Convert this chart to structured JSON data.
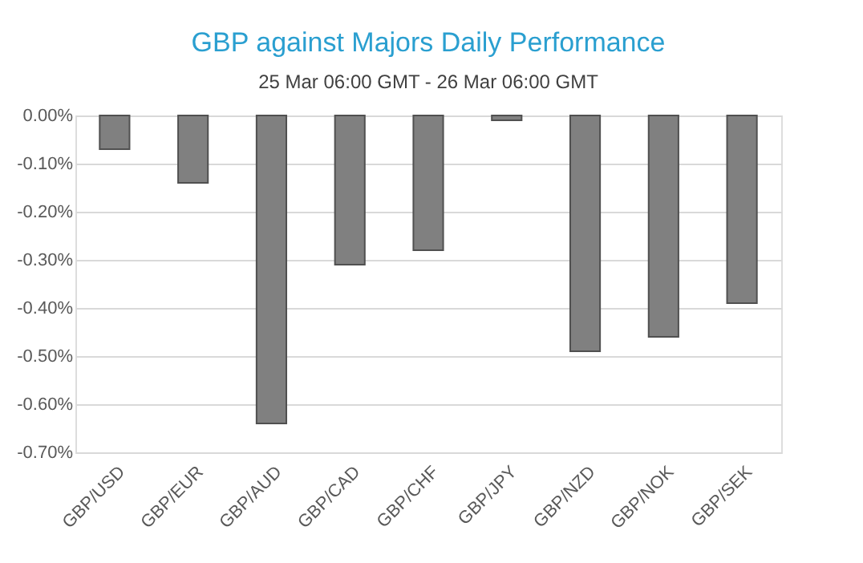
{
  "chart_data": {
    "type": "bar",
    "title": "GBP against Majors Daily Performance",
    "subtitle": "25 Mar 06:00 GMT - 26 Mar 06:00 GMT",
    "categories": [
      "GBP/USD",
      "GBP/EUR",
      "GBP/AUD",
      "GBP/CAD",
      "GBP/CHF",
      "GBP/JPY",
      "GBP/NZD",
      "GBP/NOK",
      "GBP/SEK"
    ],
    "values": [
      -0.07,
      -0.14,
      -0.64,
      -0.31,
      -0.28,
      -0.01,
      -0.49,
      -0.46,
      -0.39
    ],
    "color": "#808080",
    "ylim": [
      -0.7,
      0.0
    ],
    "yticks": [
      {
        "value": 0,
        "label": "0.00%"
      },
      {
        "value": -0.1,
        "label": "-0.10%"
      },
      {
        "value": -0.2,
        "label": "-0.20%"
      },
      {
        "value": -0.3,
        "label": "-0.30%"
      },
      {
        "value": -0.4,
        "label": "-0.40%"
      },
      {
        "value": -0.5,
        "label": "-0.50%"
      },
      {
        "value": -0.6,
        "label": "-0.60%"
      },
      {
        "value": -0.7,
        "label": "-0.70%"
      }
    ],
    "grid": "y"
  }
}
